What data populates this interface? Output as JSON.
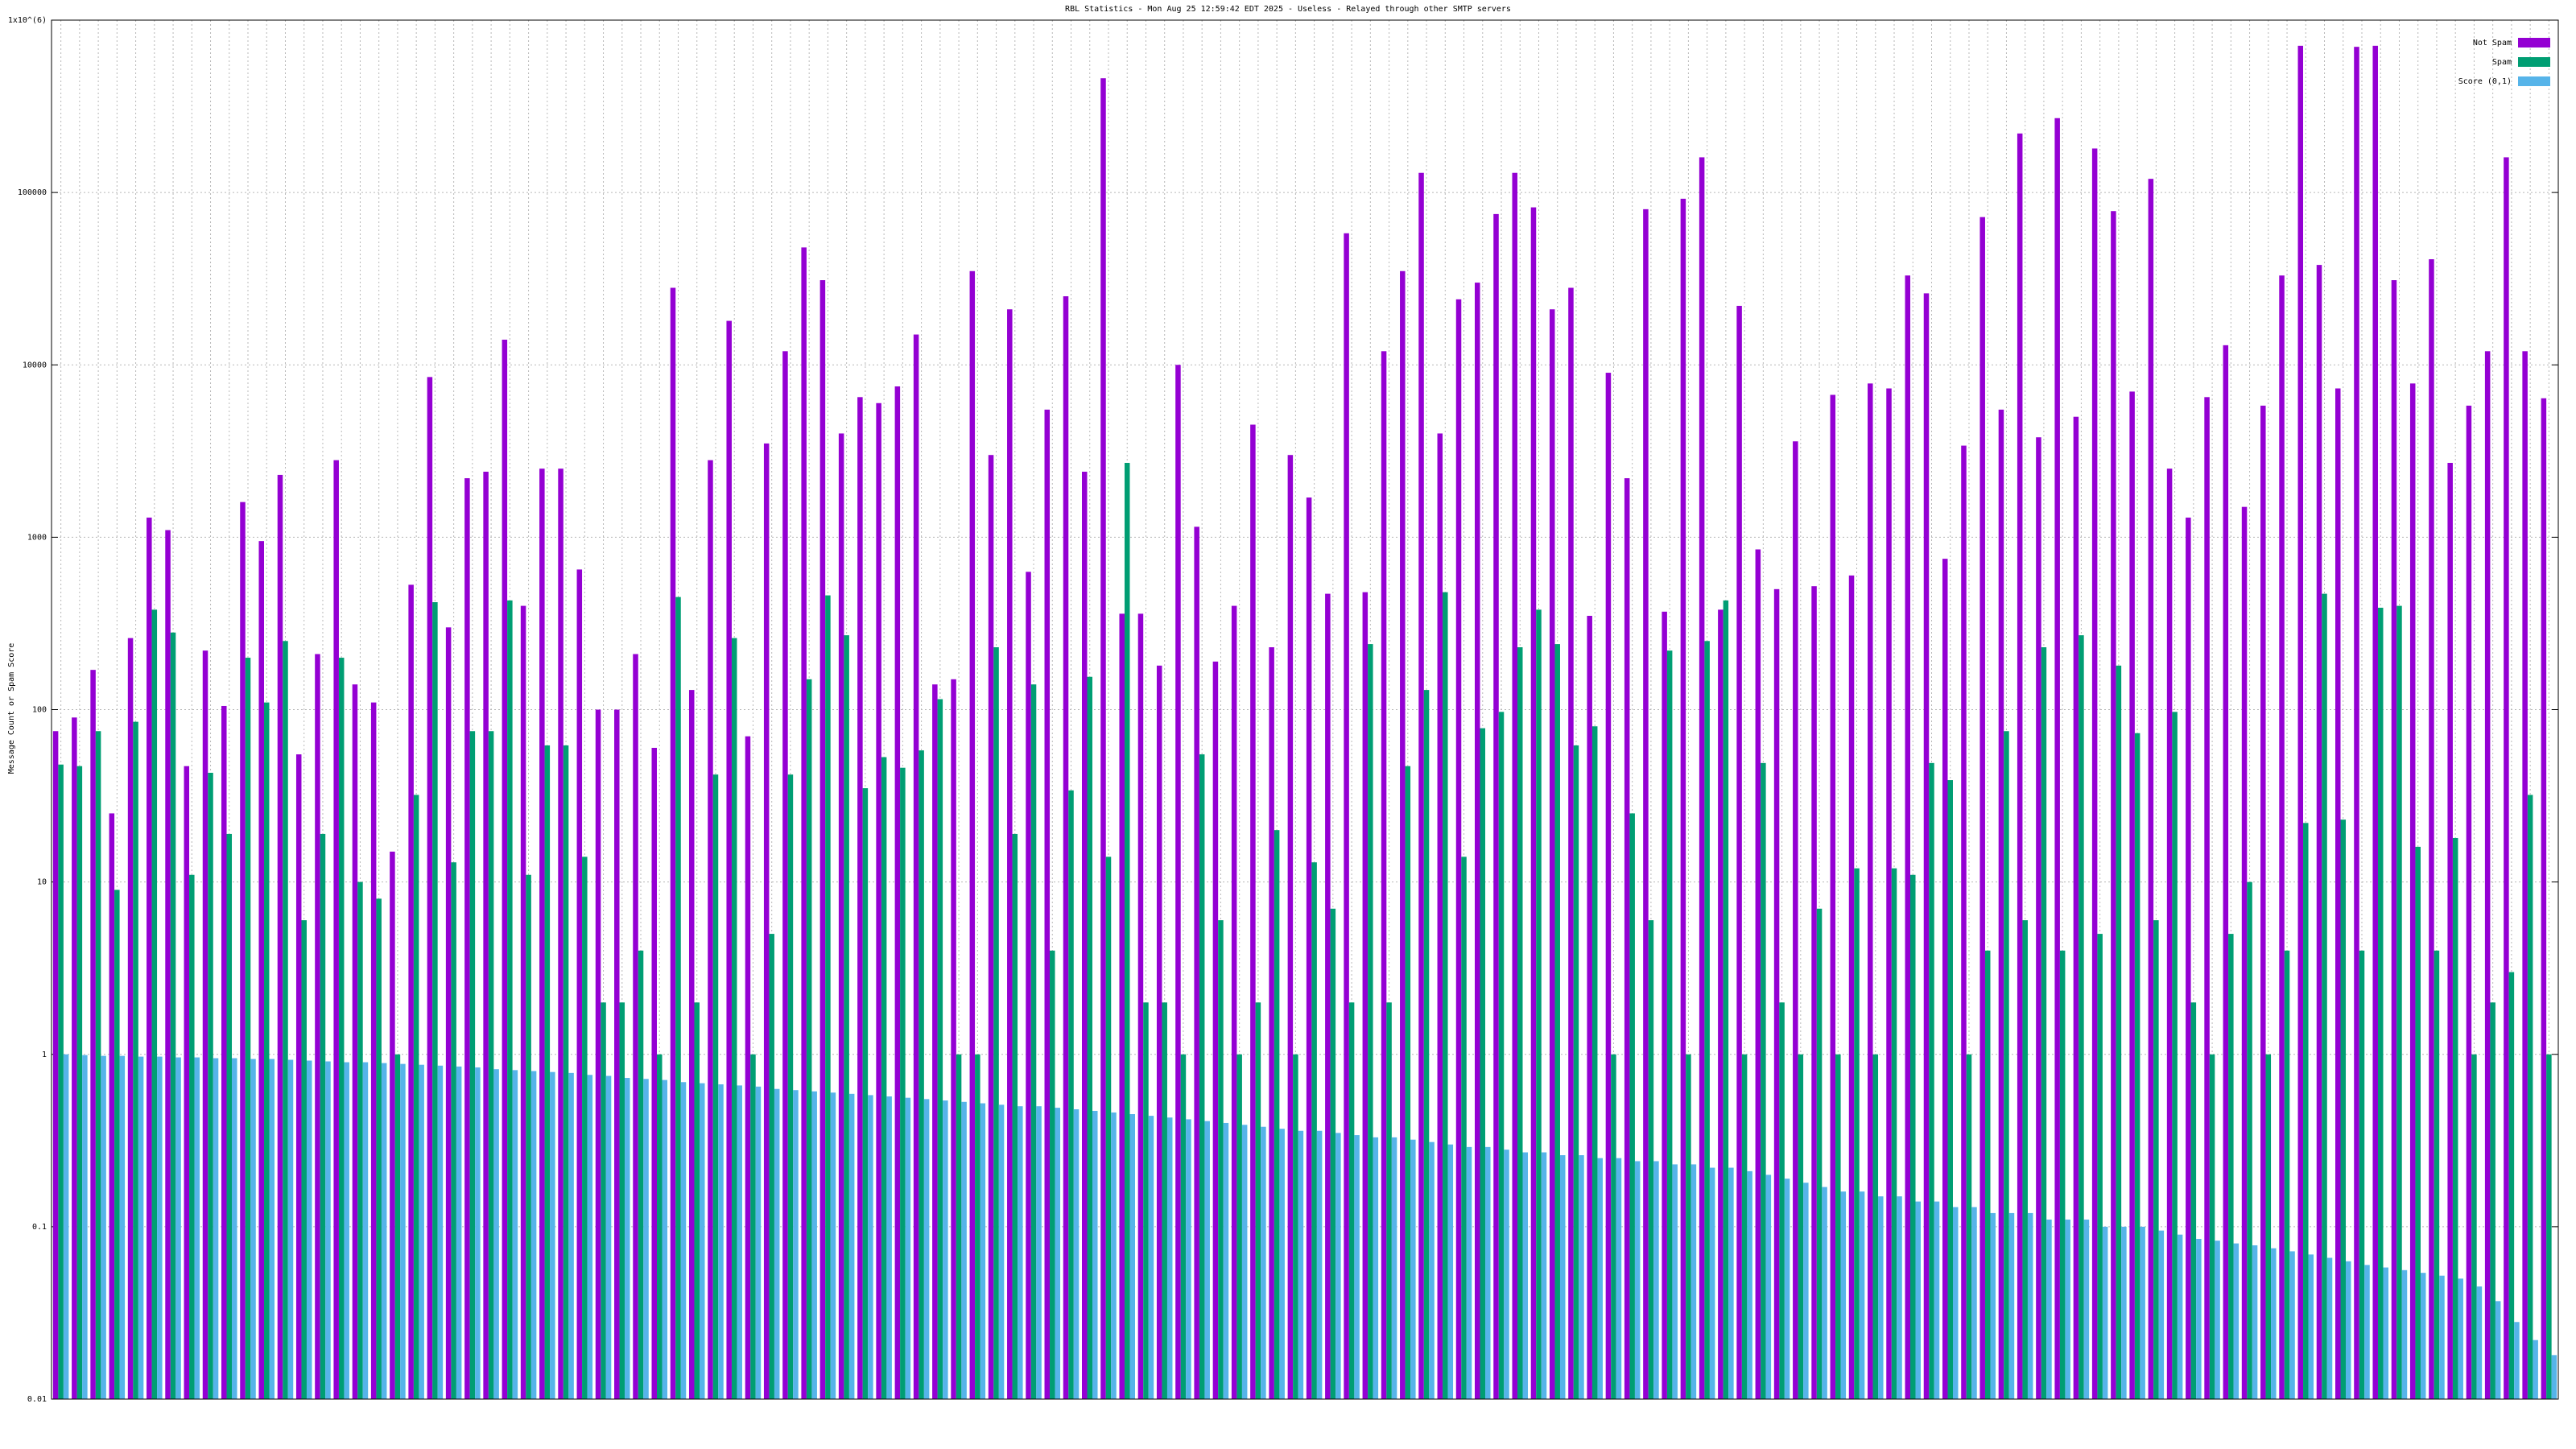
{
  "chart_data": {
    "type": "bar",
    "title": "RBL Statistics - Mon Aug 25 12:59:42 EDT 2025 - Useless - Relayed through other SMTP servers",
    "y_label": "Message Count or Spam Score",
    "log_scale": true,
    "grid": true,
    "legend": "top-right",
    "ylim": [
      0.01,
      1000000
    ],
    "yticks": [
      0.01,
      0.1,
      1,
      10,
      100,
      1000,
      10000,
      100000,
      {
        "value": 1000000,
        "label": "1x10^(6)"
      }
    ],
    "categories": [
      null,
      null,
      null,
      null,
      null,
      null,
      null,
      null,
      null,
      null,
      null,
      null,
      null,
      null,
      null,
      null,
      null,
      null,
      null,
      null,
      null,
      null,
      null,
      null,
      null,
      null,
      null,
      null,
      null,
      null,
      null,
      null,
      null,
      null,
      null,
      null,
      null,
      null,
      null,
      null,
      null,
      null,
      null,
      null,
      null,
      null,
      null,
      null,
      null,
      null,
      null,
      null,
      null,
      null,
      null,
      null,
      null,
      null,
      null,
      null,
      null,
      null,
      null,
      null,
      null,
      null,
      null,
      null,
      null,
      null,
      null,
      null,
      null,
      null,
      null,
      null,
      null,
      null,
      null,
      null,
      null,
      null,
      null,
      null,
      null,
      null,
      null,
      null,
      null,
      null,
      null,
      null,
      null,
      null,
      null,
      null,
      null,
      null,
      null,
      null,
      null,
      null,
      null,
      null,
      null,
      null,
      null,
      null,
      null,
      null,
      null,
      null,
      null,
      null,
      null,
      null,
      null,
      null,
      null,
      null,
      null,
      null,
      null,
      null,
      null,
      null,
      null,
      null,
      null,
      null,
      null,
      null,
      null,
      null
    ],
    "series": [
      {
        "name": "Not Spam",
        "color": "#9400d3",
        "values": [
          75,
          90,
          170,
          25,
          260,
          1300,
          1100,
          47,
          220,
          105,
          1600,
          950,
          2300,
          55,
          210,
          2800,
          140,
          110,
          15,
          530,
          8500,
          300,
          2200,
          2400,
          14000,
          400,
          2500,
          2500,
          650,
          100,
          100,
          210,
          60,
          28000,
          130,
          2800,
          18000,
          70,
          3500,
          12000,
          48000,
          31000,
          4000,
          6500,
          6000,
          7500,
          15000,
          140,
          150,
          35000,
          3000,
          21000,
          630,
          5500,
          25000,
          2400,
          460000,
          360,
          360,
          180,
          10000,
          1150,
          190,
          400,
          4500,
          230,
          3000,
          1700,
          470,
          58000,
          480,
          12000,
          35000,
          130000,
          4000,
          24000,
          30000,
          75000,
          130000,
          82000,
          21000,
          28000,
          350,
          9000,
          2200,
          80000,
          370,
          92000,
          160000,
          380,
          22000,
          850,
          500,
          3600,
          520,
          6700,
          600,
          7800,
          7300,
          33000,
          26000,
          750,
          3400,
          72000,
          5500,
          220000,
          3800,
          270000,
          5000,
          180000,
          78000,
          7000,
          120000,
          2500,
          1300,
          6500,
          13000,
          1500,
          5800,
          33000,
          710000,
          38000,
          7300,
          700000,
          710000,
          31000,
          7800,
          41000,
          2700,
          5800,
          12000,
          160000,
          12000,
          6400
        ]
      },
      {
        "name": "Spam",
        "color": "#009e73",
        "values": [
          48,
          47,
          75,
          9,
          85,
          380,
          280,
          11,
          43,
          19,
          200,
          110,
          250,
          6,
          19,
          200,
          10,
          8,
          1,
          32,
          420,
          13,
          75,
          75,
          430,
          11,
          62,
          62,
          14,
          2,
          2,
          4,
          1,
          450,
          2,
          42,
          260,
          1,
          5,
          42,
          150,
          460,
          270,
          35,
          53,
          46,
          58,
          115,
          1,
          1,
          230,
          19,
          140,
          4,
          34,
          155,
          14,
          2700,
          2,
          2,
          1,
          55,
          6,
          1,
          2,
          20,
          1,
          13,
          7,
          2,
          240,
          2,
          47,
          130,
          480,
          14,
          78,
          97,
          230,
          380,
          240,
          62,
          80,
          1,
          25,
          6,
          220,
          1,
          250,
          430,
          1,
          49,
          2,
          1,
          7,
          1,
          12,
          1,
          12,
          11,
          49,
          39,
          1,
          4,
          75,
          6,
          230,
          4,
          270,
          5,
          180,
          73,
          6,
          97,
          2,
          1,
          5,
          10,
          1,
          4,
          22,
          470,
          23,
          4,
          390,
          400,
          16,
          4,
          18,
          1,
          2,
          3,
          32,
          1
        ]
      },
      {
        "name": "Score (0,1)",
        "color": "#56b4e9",
        "values": [
          1,
          0.99,
          0.98,
          0.98,
          0.97,
          0.97,
          0.96,
          0.96,
          0.95,
          0.95,
          0.94,
          0.94,
          0.93,
          0.92,
          0.91,
          0.9,
          0.9,
          0.89,
          0.88,
          0.87,
          0.86,
          0.85,
          0.84,
          0.82,
          0.81,
          0.8,
          0.79,
          0.78,
          0.76,
          0.75,
          0.73,
          0.72,
          0.71,
          0.69,
          0.68,
          0.67,
          0.66,
          0.65,
          0.63,
          0.62,
          0.61,
          0.6,
          0.59,
          0.58,
          0.57,
          0.56,
          0.55,
          0.54,
          0.53,
          0.52,
          0.51,
          0.5,
          0.5,
          0.49,
          0.48,
          0.47,
          0.46,
          0.45,
          0.44,
          0.43,
          0.42,
          0.41,
          0.4,
          0.39,
          0.38,
          0.37,
          0.36,
          0.36,
          0.35,
          0.34,
          0.33,
          0.33,
          0.32,
          0.31,
          0.3,
          0.29,
          0.29,
          0.28,
          0.27,
          0.27,
          0.26,
          0.26,
          0.25,
          0.25,
          0.24,
          0.24,
          0.23,
          0.23,
          0.22,
          0.22,
          0.21,
          0.2,
          0.19,
          0.18,
          0.17,
          0.16,
          0.16,
          0.15,
          0.15,
          0.14,
          0.14,
          0.13,
          0.13,
          0.12,
          0.12,
          0.12,
          0.11,
          0.11,
          0.11,
          0.1,
          0.1,
          0.1,
          0.095,
          0.09,
          0.085,
          0.083,
          0.08,
          0.078,
          0.075,
          0.072,
          0.069,
          0.066,
          0.063,
          0.06,
          0.058,
          0.056,
          0.054,
          0.052,
          0.05,
          0.045,
          0.037,
          0.028,
          0.022,
          0.018
        ]
      }
    ]
  }
}
